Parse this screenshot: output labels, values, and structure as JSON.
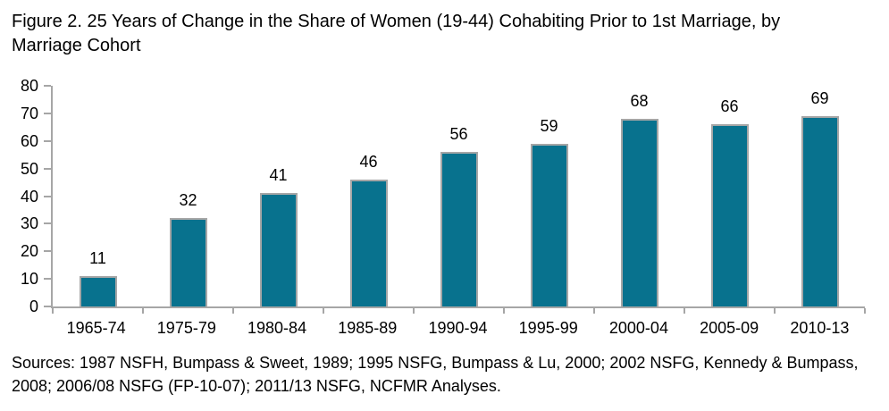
{
  "figure": {
    "title_lines": [
      "Figure 2. 25 Years of Change in the Share of Women (19-44) Cohabiting Prior to 1st Marriage, by",
      "Marriage Cohort"
    ],
    "sources_lines": [
      "Sources: 1987 NSFH, Bumpass & Sweet, 1989; 1995 NSFG, Bumpass & Lu, 2000; 2002 NSFG, Kennedy & Bumpass,",
      "2008; 2006/08 NSFG (FP-10-07); 2011/13 NSFG, NCFMR Analyses."
    ]
  },
  "chart_data": {
    "type": "bar",
    "title": "Figure 2. 25 Years of Change in the Share of Women (19-44) Cohabiting Prior to 1st Marriage, by Marriage Cohort",
    "categories": [
      "1965-74",
      "1975-79",
      "1980-84",
      "1985-89",
      "1990-94",
      "1995-99",
      "2000-04",
      "2005-09",
      "2010-13"
    ],
    "values": [
      11,
      32,
      41,
      46,
      56,
      59,
      68,
      66,
      69
    ],
    "xlabel": "",
    "ylabel": "",
    "ylim": [
      0,
      80
    ],
    "yticks": [
      0,
      10,
      20,
      30,
      40,
      50,
      60,
      70,
      80
    ],
    "grid": "off",
    "legend": "none",
    "data_labels": true,
    "colors": {
      "bar_fill": "#08728E",
      "bar_border": "#A6A6A6",
      "axis": "#A6A6A6",
      "text": "#000000"
    }
  }
}
